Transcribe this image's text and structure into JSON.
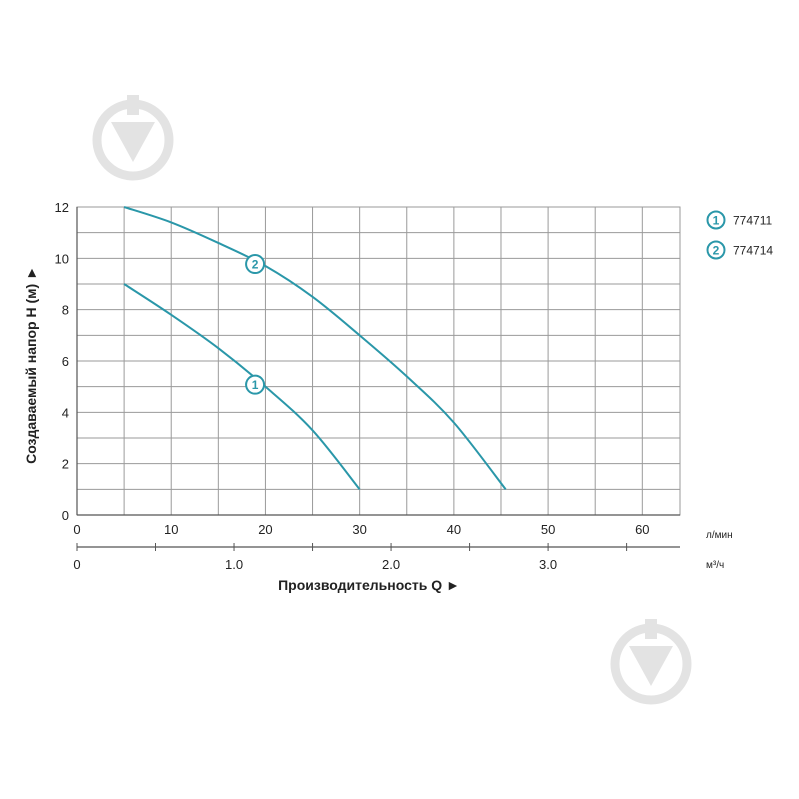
{
  "colors": {
    "curve": "#2a97a9",
    "grid": "#9a9a9a",
    "axis": "#555555",
    "watermark": "#e3e3e3"
  },
  "icons": {
    "watermark": "drop-pin-watermark-icon"
  },
  "chart_data": {
    "type": "line",
    "ylabel": "Создаваемый напор H (м) ►",
    "xlabel": "Производительность Q ►",
    "x_unit_primary": "л/мин",
    "x_unit_secondary": "м³/ч",
    "xlim": [
      0,
      64
    ],
    "ylim": [
      0,
      12
    ],
    "x_ticks": [
      "0",
      "10",
      "20",
      "30",
      "40",
      "50",
      "60"
    ],
    "x_ticks_secondary": [
      "0",
      "1.0",
      "2.0",
      "3.0"
    ],
    "y_ticks": [
      "0",
      "2",
      "4",
      "6",
      "8",
      "10",
      "12"
    ],
    "grid": true,
    "series": [
      {
        "name": "774711",
        "marker": "1",
        "x": [
          5,
          10,
          15,
          20,
          25,
          30
        ],
        "y": [
          9.0,
          7.8,
          6.5,
          5.0,
          3.3,
          1.0
        ]
      },
      {
        "name": "774714",
        "marker": "2",
        "x": [
          5,
          10,
          15,
          20,
          25,
          30,
          35,
          40,
          45.5
        ],
        "y": [
          12.0,
          11.4,
          10.6,
          9.7,
          8.5,
          7.0,
          5.4,
          3.6,
          1.0
        ]
      }
    ],
    "legend": [
      {
        "marker": "1",
        "label": "774711"
      },
      {
        "marker": "2",
        "label": "774714"
      }
    ]
  }
}
